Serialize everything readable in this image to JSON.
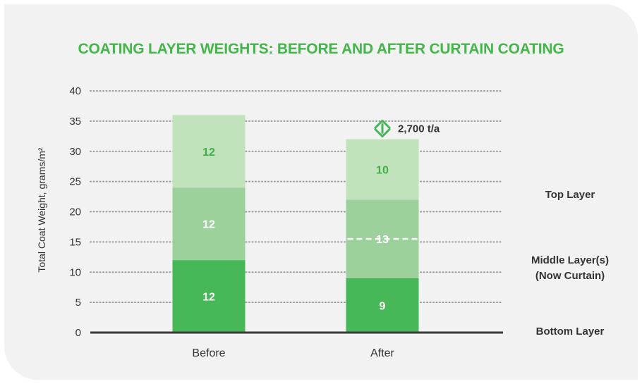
{
  "chart_data": {
    "type": "bar",
    "stacked": true,
    "title": "COATING LAYER WEIGHTS: BEFORE AND AFTER CURTAIN COATING",
    "ylabel": "Total Coat Weight, grams/m²",
    "xlabel": "",
    "ylim": [
      0,
      40
    ],
    "yticks": [
      0,
      5,
      10,
      15,
      20,
      25,
      30,
      35,
      40
    ],
    "grid": true,
    "categories": [
      "Before",
      "After"
    ],
    "series": [
      {
        "name": "Bottom Layer",
        "values": [
          12,
          9
        ],
        "labels": [
          "12",
          "9"
        ],
        "color": "#47b857",
        "label_color": "#ffffff"
      },
      {
        "name": "Middle Layer(s) (Now Curtain)",
        "values": [
          12,
          13
        ],
        "labels": [
          "12",
          "13"
        ],
        "color": "#9dd19c",
        "label_color": "#ffffff"
      },
      {
        "name": "Top Layer",
        "values": [
          12,
          10
        ],
        "labels": [
          "12",
          "10"
        ],
        "color": "#c0e3bb",
        "label_color": "#3fae46"
      }
    ],
    "annotations": [
      {
        "text": "2,700 t/a",
        "category": "After",
        "from": 32,
        "to": 36
      }
    ],
    "legend": [
      "Top Layer",
      "Middle Layer(s)",
      "(Now Curtain)",
      "Bottom Layer"
    ]
  }
}
